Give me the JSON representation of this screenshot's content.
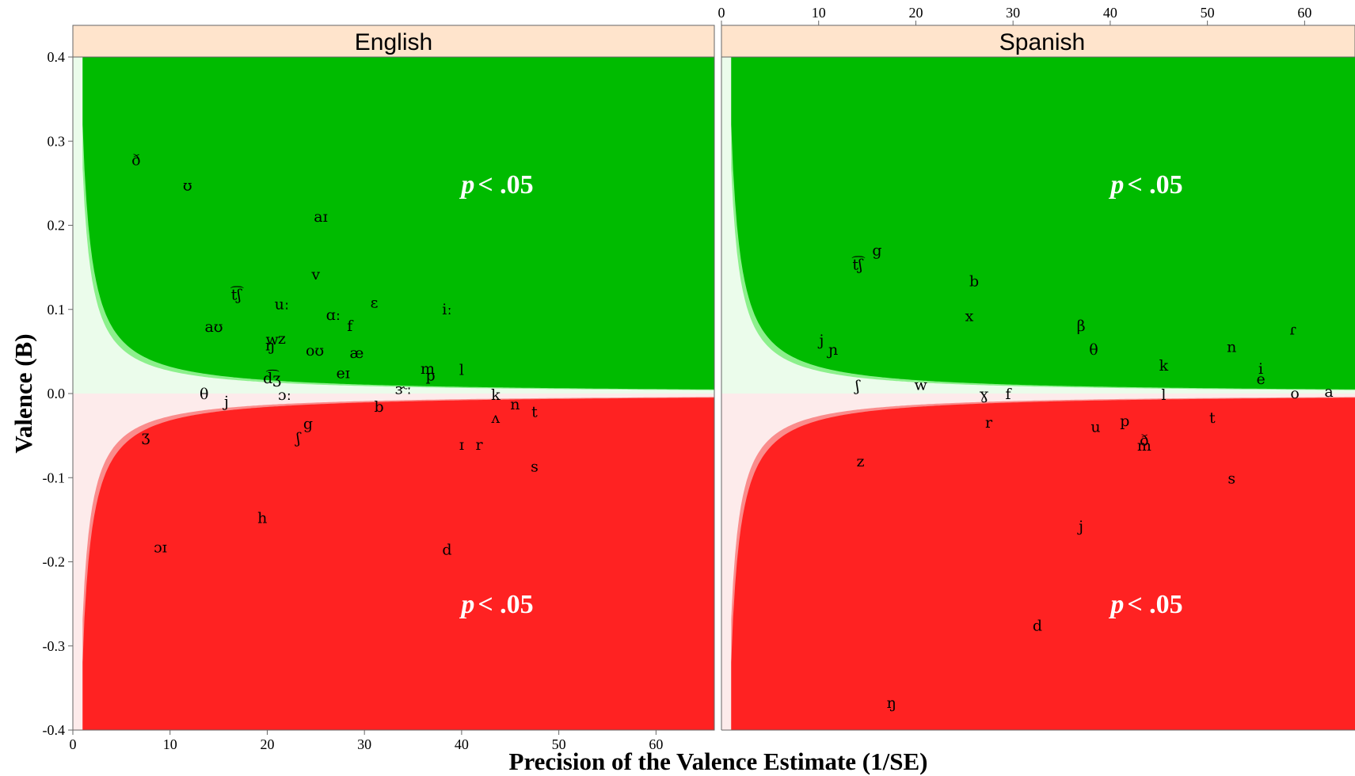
{
  "chart_data": {
    "type": "scatter",
    "xlabel": "Precision of the Valence Estimate (1/SE)",
    "ylabel": "Valence (B)",
    "xlim": [
      0,
      66
    ],
    "ylim": [
      -0.4,
      0.4
    ],
    "x_ticks": [
      "0",
      "10",
      "20",
      "30",
      "40",
      "50",
      "60"
    ],
    "y_ticks": [
      "-0.4",
      "-0.3",
      "-0.2",
      "-0.1",
      "0.0",
      "0.1",
      "0.2",
      "0.3",
      "0.4"
    ],
    "x_axis_position": {
      "English": "bottom",
      "Spanish": "top"
    },
    "grid": false,
    "significance_label_prefix": "p",
    "significance_label_suffix": "< .05",
    "region_colors": {
      "positive_sig": "#00bb00",
      "positive_band": "#8cf08c",
      "positive_bg": "#ebfceb",
      "negative_sig": "#ff2222",
      "negative_band": "#fa8c8c",
      "negative_bg": "#fdebeb"
    },
    "panels": [
      {
        "name": "English",
        "points": [
          {
            "label": "ð",
            "x": 6.5,
            "y": 0.277
          },
          {
            "label": "ʊ",
            "x": 11.8,
            "y": 0.247
          },
          {
            "label": "aɪ",
            "x": 25.5,
            "y": 0.21
          },
          {
            "label": "v",
            "x": 25,
            "y": 0.141
          },
          {
            "label": "t͡ʃ",
            "x": 16.8,
            "y": 0.117
          },
          {
            "label": "uː",
            "x": 21.5,
            "y": 0.106
          },
          {
            "label": "ɛ",
            "x": 31,
            "y": 0.108
          },
          {
            "label": "iː",
            "x": 38.5,
            "y": 0.1
          },
          {
            "label": "ɑː",
            "x": 26.8,
            "y": 0.093
          },
          {
            "label": "f",
            "x": 28.5,
            "y": 0.08
          },
          {
            "label": "aʊ",
            "x": 14.5,
            "y": 0.079
          },
          {
            "label": "w",
            "x": 20.5,
            "y": 0.064
          },
          {
            "label": "z",
            "x": 21.5,
            "y": 0.065
          },
          {
            "label": "ŋ",
            "x": 20.3,
            "y": 0.057
          },
          {
            "label": "oʊ",
            "x": 24.9,
            "y": 0.051
          },
          {
            "label": "æ",
            "x": 29.2,
            "y": 0.048
          },
          {
            "label": "eɪ",
            "x": 27.8,
            "y": 0.024
          },
          {
            "label": "m",
            "x": 36.5,
            "y": 0.029
          },
          {
            "label": "p",
            "x": 36.8,
            "y": 0.021
          },
          {
            "label": "l",
            "x": 40,
            "y": 0.028
          },
          {
            "label": "d͡ʒ",
            "x": 20.5,
            "y": 0.018
          },
          {
            "label": "ɔː",
            "x": 21.8,
            "y": -0.002
          },
          {
            "label": "ɝː",
            "x": 34,
            "y": 0.005
          },
          {
            "label": "θ",
            "x": 13.5,
            "y": -0.001
          },
          {
            "label": "j",
            "x": 15.8,
            "y": -0.01
          },
          {
            "label": "k",
            "x": 43.5,
            "y": -0.002
          },
          {
            "label": "b",
            "x": 31.5,
            "y": -0.016
          },
          {
            "label": "n",
            "x": 45.5,
            "y": -0.013
          },
          {
            "label": "t",
            "x": 47.5,
            "y": -0.022
          },
          {
            "label": "ʌ",
            "x": 43.5,
            "y": -0.029
          },
          {
            "label": "g",
            "x": 24.2,
            "y": -0.036
          },
          {
            "label": "ʒ",
            "x": 7.5,
            "y": -0.051
          },
          {
            "label": "ʃ",
            "x": 23.2,
            "y": -0.053
          },
          {
            "label": "ɪ",
            "x": 40,
            "y": -0.061
          },
          {
            "label": "r",
            "x": 41.8,
            "y": -0.061
          },
          {
            "label": "s",
            "x": 47.5,
            "y": -0.087
          },
          {
            "label": "h",
            "x": 19.5,
            "y": -0.148
          },
          {
            "label": "ɔɪ",
            "x": 9,
            "y": -0.183
          },
          {
            "label": "d",
            "x": 38.5,
            "y": -0.186
          }
        ]
      },
      {
        "name": "Spanish",
        "points": [
          {
            "label": "g",
            "x": 16,
            "y": 0.17
          },
          {
            "label": "t͡ʃ",
            "x": 14,
            "y": 0.153
          },
          {
            "label": "b",
            "x": 26,
            "y": 0.133
          },
          {
            "label": "x",
            "x": 25.5,
            "y": 0.092
          },
          {
            "label": "β",
            "x": 37,
            "y": 0.08
          },
          {
            "label": "ɾ",
            "x": 58.8,
            "y": 0.076
          },
          {
            "label": "j",
            "x": 10.3,
            "y": 0.063
          },
          {
            "label": "ɲ",
            "x": 11.5,
            "y": 0.052
          },
          {
            "label": "n",
            "x": 52.5,
            "y": 0.055
          },
          {
            "label": "θ",
            "x": 38.3,
            "y": 0.052
          },
          {
            "label": "k",
            "x": 45.5,
            "y": 0.033
          },
          {
            "label": "i",
            "x": 55.5,
            "y": 0.029
          },
          {
            "label": "e",
            "x": 55.5,
            "y": 0.017
          },
          {
            "label": "ʃ",
            "x": 14,
            "y": 0.009
          },
          {
            "label": "w",
            "x": 20.5,
            "y": 0.01
          },
          {
            "label": "ɣ",
            "x": 27,
            "y": -0.001
          },
          {
            "label": "f",
            "x": 29.5,
            "y": -0.001
          },
          {
            "label": "l",
            "x": 45.5,
            "y": -0.002
          },
          {
            "label": "o",
            "x": 59,
            "y": 0.0
          },
          {
            "label": "a",
            "x": 62.5,
            "y": 0.002
          },
          {
            "label": "t",
            "x": 50.5,
            "y": -0.029
          },
          {
            "label": "r",
            "x": 27.5,
            "y": -0.035
          },
          {
            "label": "p",
            "x": 41.5,
            "y": -0.033
          },
          {
            "label": "u",
            "x": 38.5,
            "y": -0.04
          },
          {
            "label": "ð",
            "x": 43.5,
            "y": -0.056
          },
          {
            "label": "m",
            "x": 43.5,
            "y": -0.062
          },
          {
            "label": "z",
            "x": 14.3,
            "y": -0.081
          },
          {
            "label": "s",
            "x": 52.5,
            "y": -0.101
          },
          {
            "label": "j",
            "x": 37,
            "y": -0.158
          },
          {
            "label": "d",
            "x": 32.5,
            "y": -0.276
          },
          {
            "label": "ŋ",
            "x": 17.5,
            "y": -0.368
          }
        ]
      }
    ]
  }
}
